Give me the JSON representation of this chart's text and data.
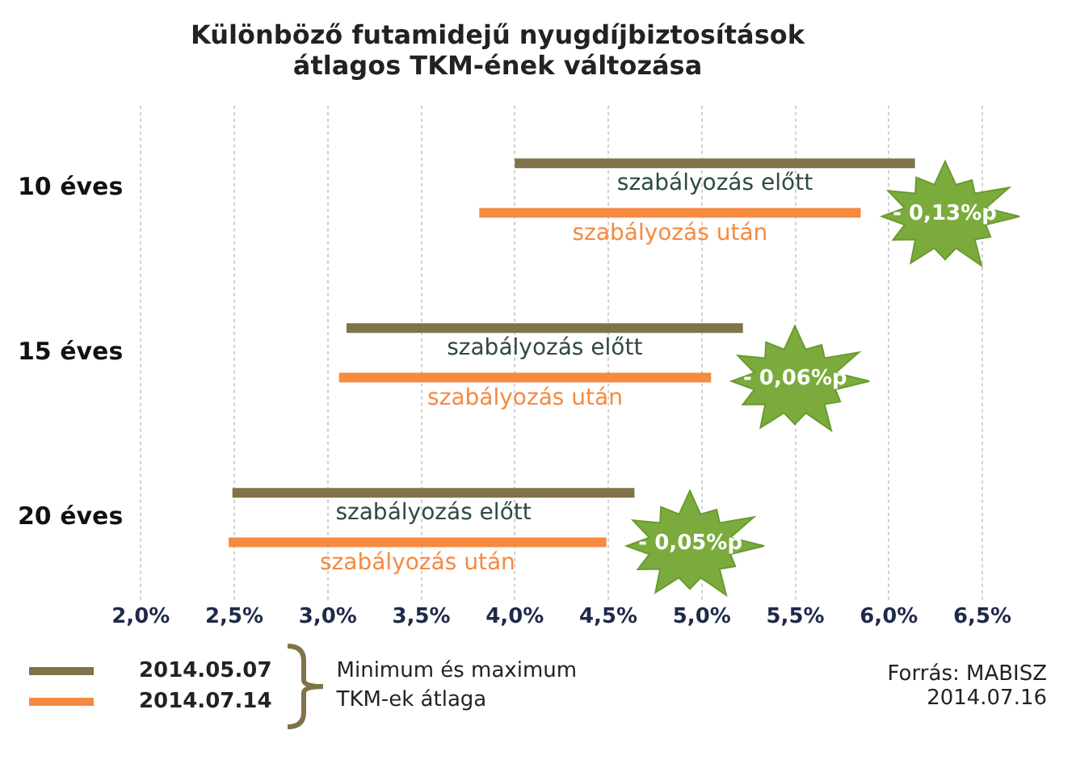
{
  "chart_data": {
    "type": "bar",
    "orientation": "horizontal",
    "title": "Különböző futamidejű nyugdíjbiztosítások\nátlagos TKM-ének változása",
    "categories": [
      "10 éves",
      "15 éves",
      "20 éves"
    ],
    "series": [
      {
        "name": "2014.05.07",
        "color": "#7f7348",
        "base": [
          4.0,
          3.1,
          2.49
        ],
        "values": [
          2.14,
          2.12,
          2.15
        ]
      },
      {
        "name": "2014.07.14",
        "color": "#f58a40",
        "base": [
          3.81,
          3.06,
          2.47
        ],
        "values": [
          2.04,
          1.99,
          2.02
        ]
      }
    ],
    "xlim": [
      2.0,
      6.5
    ],
    "xticks": [
      {
        "value": 2.0,
        "label": "2,0%"
      },
      {
        "value": 2.5,
        "label": "2,5%"
      },
      {
        "value": 3.0,
        "label": "3,0%"
      },
      {
        "value": 3.5,
        "label": "3,5%"
      },
      {
        "value": 4.0,
        "label": "4,0%"
      },
      {
        "value": 4.5,
        "label": "4,5%"
      },
      {
        "value": 5.0,
        "label": "5,0%"
      },
      {
        "value": 5.5,
        "label": "5,5%"
      },
      {
        "value": 6.0,
        "label": "6,0%"
      },
      {
        "value": 6.5,
        "label": "6,5%"
      }
    ],
    "grid": "x",
    "legend": "bottom left",
    "legend_title": "Minimum és maximum\nTKM-ek átlaga",
    "annotations": [
      "szabályozás előtt",
      "szabályozás után",
      "- 0,13%p",
      "szabályozás előtt",
      "szabályozás után",
      "- 0,06%p",
      "szabályozás előtt",
      "szabályozás után",
      "- 0,05%p",
      "Forrás: MABISZ",
      "2014.07.16"
    ]
  }
}
